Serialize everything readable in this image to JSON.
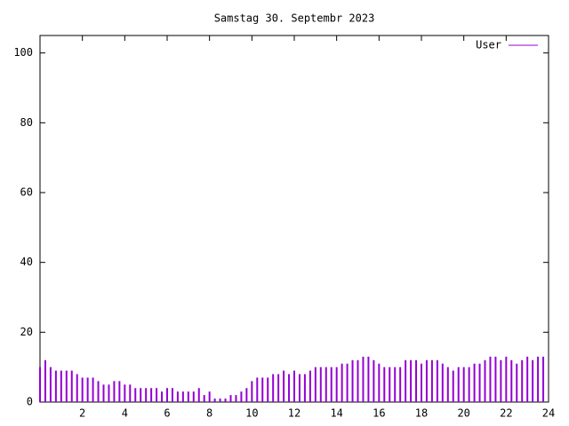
{
  "chart_data": {
    "type": "impulse",
    "title": "Samstag 30. Septembr 2023",
    "x": [
      0,
      0.25,
      0.5,
      0.75,
      1,
      1.25,
      1.5,
      1.75,
      2,
      2.25,
      2.5,
      2.75,
      3,
      3.25,
      3.5,
      3.75,
      4,
      4.25,
      4.5,
      4.75,
      5,
      5.25,
      5.5,
      5.75,
      6,
      6.25,
      6.5,
      6.75,
      7,
      7.25,
      7.5,
      7.75,
      8,
      8.25,
      8.5,
      8.75,
      9,
      9.25,
      9.5,
      9.75,
      10,
      10.25,
      10.5,
      10.75,
      11,
      11.25,
      11.5,
      11.75,
      12,
      12.25,
      12.5,
      12.75,
      13,
      13.25,
      13.5,
      13.75,
      14,
      14.25,
      14.5,
      14.75,
      15,
      15.25,
      15.5,
      15.75,
      16,
      16.25,
      16.5,
      16.75,
      17,
      17.25,
      17.5,
      17.75,
      18,
      18.25,
      18.5,
      18.75,
      19,
      19.25,
      19.5,
      19.75,
      20,
      20.25,
      20.5,
      20.75,
      21,
      21.25,
      21.5,
      21.75,
      22,
      22.25,
      22.5,
      22.75,
      23,
      23.25,
      23.5,
      23.75
    ],
    "series": [
      {
        "name": "User",
        "color": "#9400d3",
        "values": [
          10,
          12,
          10,
          9,
          9,
          9,
          9,
          8,
          7,
          7,
          7,
          6,
          5,
          5,
          6,
          6,
          5,
          5,
          4,
          4,
          4,
          4,
          4,
          3,
          4,
          4,
          3,
          3,
          3,
          3,
          4,
          2,
          3,
          1,
          1,
          1,
          2,
          2,
          3,
          4,
          6,
          7,
          7,
          7,
          8,
          8,
          9,
          8,
          9,
          8,
          8,
          9,
          10,
          10,
          10,
          10,
          10,
          11,
          11,
          12,
          12,
          13,
          13,
          12,
          11,
          10,
          10,
          10,
          10,
          12,
          12,
          12,
          11,
          12,
          12,
          12,
          11,
          10,
          9,
          10,
          10,
          10,
          11,
          11,
          12,
          13,
          13,
          12,
          13,
          12,
          11,
          12,
          13,
          12,
          13,
          13
        ]
      }
    ],
    "xlim": [
      0,
      24
    ],
    "xticks": [
      2,
      4,
      6,
      8,
      10,
      12,
      14,
      16,
      18,
      20,
      22,
      24
    ],
    "ylim": [
      0,
      105
    ],
    "yticks": [
      0,
      20,
      40,
      60,
      80,
      100
    ],
    "legend": "top-right"
  }
}
